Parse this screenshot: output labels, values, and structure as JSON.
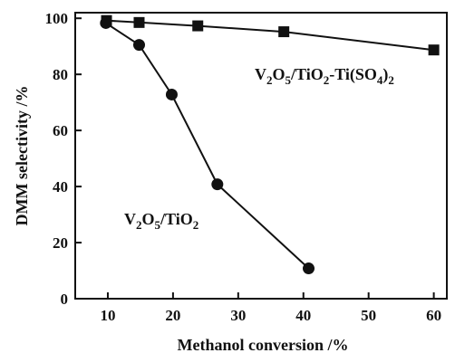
{
  "chart_data": {
    "type": "line",
    "xlabel": "Methanol conversion /%",
    "ylabel": "DMM selectivity /%",
    "xlim": [
      5,
      62
    ],
    "ylim": [
      0,
      102
    ],
    "xticks": [
      10,
      20,
      30,
      40,
      50,
      60
    ],
    "yticks": [
      0,
      20,
      40,
      60,
      80,
      100
    ],
    "grid": false,
    "legend": "none",
    "series": [
      {
        "name": "V2O5/TiO2-Ti(SO4)2",
        "label_parts": [
          {
            "t": "V",
            "sub": false
          },
          {
            "t": "2",
            "sub": true
          },
          {
            "t": "O",
            "sub": false
          },
          {
            "t": "5",
            "sub": true
          },
          {
            "t": "/TiO",
            "sub": false
          },
          {
            "t": "2",
            "sub": true
          },
          {
            "t": "-Ti(SO",
            "sub": false
          },
          {
            "t": "4",
            "sub": true
          },
          {
            "t": ")",
            "sub": false
          },
          {
            "t": "2",
            "sub": true
          }
        ],
        "marker": "square",
        "color": "#111111",
        "x": [
          9.8,
          14.8,
          23.8,
          37,
          60
        ],
        "y": [
          99.2,
          98.5,
          97.3,
          95.2,
          88.7
        ]
      },
      {
        "name": "V2O5/TiO2",
        "label_parts": [
          {
            "t": "V",
            "sub": false
          },
          {
            "t": "2",
            "sub": true
          },
          {
            "t": "O",
            "sub": false
          },
          {
            "t": "5",
            "sub": true
          },
          {
            "t": "/TiO",
            "sub": false
          },
          {
            "t": "2",
            "sub": true
          }
        ],
        "marker": "circle",
        "color": "#111111",
        "x": [
          9.7,
          14.8,
          19.8,
          26.8,
          40.8
        ],
        "y": [
          98.3,
          90.5,
          72.8,
          40.8,
          10.8
        ]
      }
    ]
  }
}
